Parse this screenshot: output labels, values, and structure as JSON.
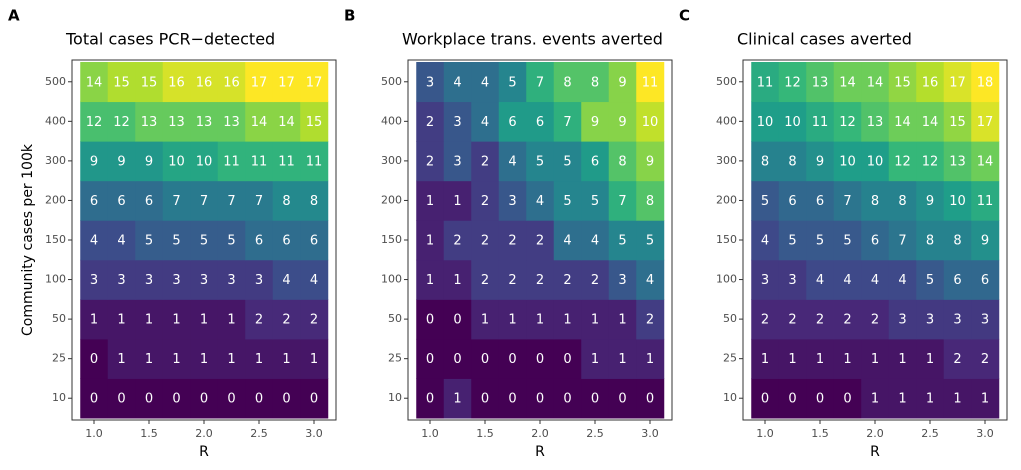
{
  "chart_data": [
    {
      "type": "heatmap",
      "panel": "A",
      "title": "Total cases PCR−detected",
      "xlabel": "R",
      "ylabel": "Community cases per 100k",
      "color_scale": "viridis",
      "x": [
        1,
        1.25,
        1.5,
        1.75,
        2,
        2.25,
        2.5,
        2.75,
        3
      ],
      "xlim": [
        0.8,
        3.2
      ],
      "xticks": [
        {
          "value": 1,
          "label": "1.0"
        },
        {
          "value": 1.5,
          "label": "1.5"
        },
        {
          "value": 2,
          "label": "2.0"
        },
        {
          "value": 2.5,
          "label": "2.5"
        },
        {
          "value": 3,
          "label": "3.0"
        }
      ],
      "y_categories": [
        "10",
        "25",
        "50",
        "100",
        "150",
        "200",
        "300",
        "400",
        "500"
      ],
      "values": [
        [
          0,
          0,
          0,
          0,
          0,
          0,
          0,
          0,
          0
        ],
        [
          0,
          1,
          1,
          1,
          1,
          1,
          1,
          1,
          1
        ],
        [
          1,
          1,
          1,
          1,
          1,
          1,
          2,
          2,
          2
        ],
        [
          3,
          3,
          3,
          3,
          3,
          3,
          3,
          4,
          4
        ],
        [
          4,
          4,
          5,
          5,
          5,
          5,
          6,
          6,
          6
        ],
        [
          6,
          6,
          6,
          7,
          7,
          7,
          7,
          8,
          8
        ],
        [
          9,
          9,
          9,
          10,
          10,
          11,
          11,
          11,
          11
        ],
        [
          12,
          12,
          13,
          13,
          13,
          13,
          14,
          14,
          15
        ],
        [
          14,
          15,
          15,
          16,
          16,
          16,
          17,
          17,
          17
        ]
      ]
    },
    {
      "type": "heatmap",
      "panel": "B",
      "title": "Workplace trans. events averted",
      "xlabel": "R",
      "color_scale": "viridis",
      "x": [
        1,
        1.25,
        1.5,
        1.75,
        2,
        2.25,
        2.5,
        2.75,
        3
      ],
      "xlim": [
        0.8,
        3.2
      ],
      "xticks": [
        {
          "value": 1,
          "label": "1.0"
        },
        {
          "value": 1.5,
          "label": "1.5"
        },
        {
          "value": 2,
          "label": "2.0"
        },
        {
          "value": 2.5,
          "label": "2.5"
        },
        {
          "value": 3,
          "label": "3.0"
        }
      ],
      "y_categories": [
        "10",
        "25",
        "50",
        "100",
        "150",
        "200",
        "300",
        "400",
        "500"
      ],
      "values": [
        [
          0,
          1,
          0,
          0,
          0,
          0,
          0,
          0,
          0
        ],
        [
          0,
          0,
          0,
          0,
          0,
          0,
          1,
          1,
          1
        ],
        [
          0,
          0,
          1,
          1,
          1,
          1,
          1,
          1,
          2
        ],
        [
          1,
          1,
          2,
          2,
          2,
          2,
          2,
          3,
          4
        ],
        [
          1,
          2,
          2,
          2,
          2,
          4,
          4,
          5,
          5
        ],
        [
          1,
          1,
          2,
          3,
          4,
          5,
          5,
          7,
          8
        ],
        [
          2,
          3,
          2,
          4,
          5,
          5,
          6,
          8,
          9
        ],
        [
          2,
          3,
          4,
          6,
          6,
          7,
          9,
          9,
          10
        ],
        [
          3,
          4,
          4,
          5,
          7,
          8,
          8,
          9,
          11
        ]
      ]
    },
    {
      "type": "heatmap",
      "panel": "C",
      "title": "Clinical cases averted",
      "xlabel": "R",
      "color_scale": "viridis",
      "x": [
        1,
        1.25,
        1.5,
        1.75,
        2,
        2.25,
        2.5,
        2.75,
        3
      ],
      "xlim": [
        0.8,
        3.2
      ],
      "xticks": [
        {
          "value": 1,
          "label": "1.0"
        },
        {
          "value": 1.5,
          "label": "1.5"
        },
        {
          "value": 2,
          "label": "2.0"
        },
        {
          "value": 2.5,
          "label": "2.5"
        },
        {
          "value": 3,
          "label": "3.0"
        }
      ],
      "y_categories": [
        "10",
        "25",
        "50",
        "100",
        "150",
        "200",
        "300",
        "400",
        "500"
      ],
      "values": [
        [
          0,
          0,
          0,
          0,
          1,
          1,
          1,
          1,
          1
        ],
        [
          1,
          1,
          1,
          1,
          1,
          1,
          1,
          2,
          2
        ],
        [
          2,
          2,
          2,
          2,
          2,
          3,
          3,
          3,
          3
        ],
        [
          3,
          3,
          4,
          4,
          4,
          4,
          5,
          6,
          6
        ],
        [
          4,
          5,
          5,
          5,
          6,
          7,
          8,
          8,
          9
        ],
        [
          5,
          6,
          6,
          7,
          8,
          8,
          9,
          10,
          11
        ],
        [
          8,
          8,
          9,
          10,
          10,
          12,
          12,
          13,
          14
        ],
        [
          10,
          10,
          11,
          12,
          13,
          14,
          14,
          15,
          17
        ],
        [
          11,
          12,
          13,
          14,
          14,
          15,
          16,
          17,
          18
        ]
      ]
    }
  ]
}
